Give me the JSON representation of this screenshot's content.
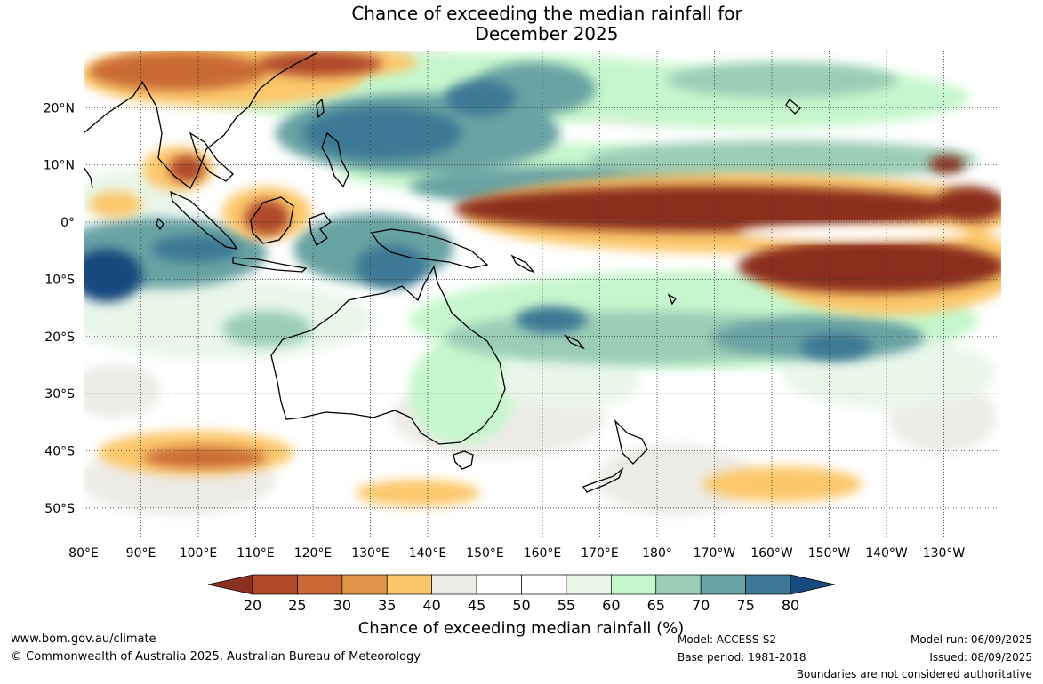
{
  "title": {
    "line1": "Chance of exceeding the median rainfall for",
    "line2": "December 2025"
  },
  "map": {
    "lat_labels": [
      "20°N",
      "10°N",
      "0°",
      "10°S",
      "20°S",
      "30°S",
      "40°S",
      "50°S"
    ],
    "lat_values": [
      20,
      10,
      0,
      -10,
      -20,
      -30,
      -40,
      -50
    ],
    "lon_labels": [
      "80°E",
      "90°E",
      "100°E",
      "110°E",
      "120°E",
      "130°E",
      "140°E",
      "150°E",
      "160°E",
      "170°E",
      "180°",
      "170°W",
      "160°W",
      "150°W",
      "140°W",
      "130°W"
    ],
    "lon_values": [
      80,
      90,
      100,
      110,
      120,
      130,
      140,
      150,
      160,
      170,
      180,
      190,
      200,
      210,
      220,
      230
    ],
    "lon_range": [
      80,
      240
    ],
    "lat_range": [
      -55,
      30
    ]
  },
  "colorbar": {
    "label": "Chance of exceeding median rainfall (%)",
    "ticks": [
      "20",
      "25",
      "30",
      "35",
      "40",
      "45",
      "50",
      "55",
      "60",
      "65",
      "70",
      "75",
      "80"
    ],
    "colors": [
      "#8b2f1f",
      "#b04a2a",
      "#c96a35",
      "#df9447",
      "#fcc76a",
      "#edebe7",
      "#ffffff",
      "#ffffff",
      "#e9f6ea",
      "#c6f7cc",
      "#9acdb6",
      "#69a3a3",
      "#3e7896",
      "#184a7e"
    ]
  },
  "footer": {
    "url": "www.bom.gov.au/climate",
    "copyright": "© Commonwealth of Australia 2025, Australian Bureau of Meteorology",
    "model": "Model: ACCESS-S2",
    "base_period": "Base period: 1981-2018",
    "model_run": "Model run: 06/09/2025",
    "issued": "Issued: 08/09/2025",
    "disclaimer": "Boundaries are not considered authoritative"
  }
}
